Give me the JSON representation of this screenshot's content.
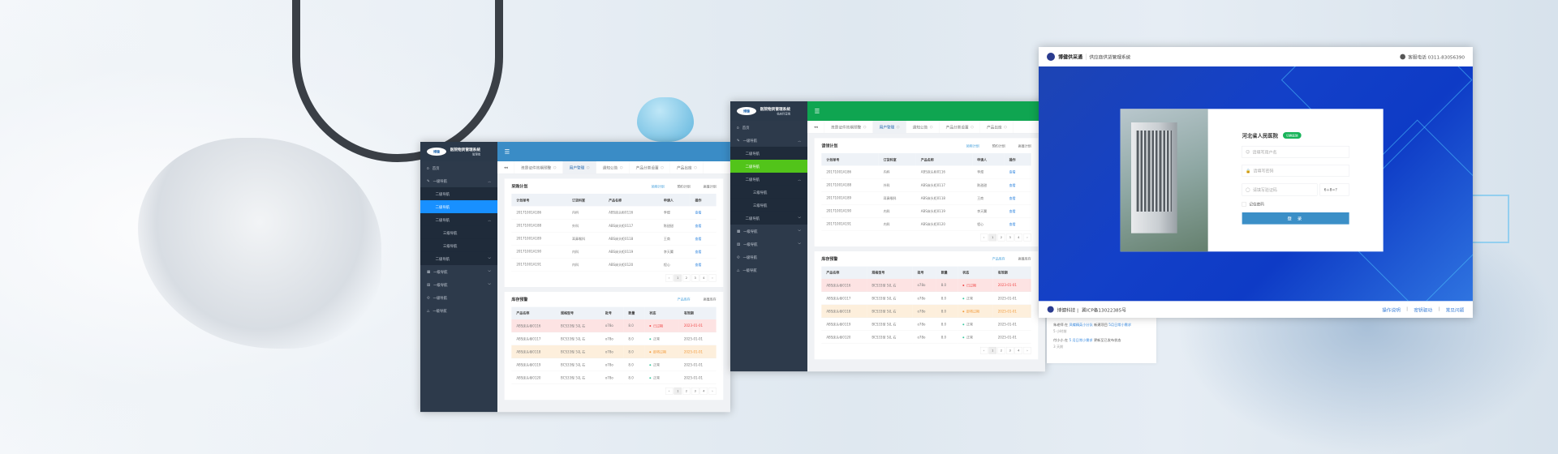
{
  "colors": {
    "blue_header": "#3a8cc6",
    "blue_active": "#1890ff",
    "green_header": "#0fa551",
    "green_active": "#52c41a",
    "sidebar": "#2d3a4b",
    "login_blue": "#1340c8",
    "login_button": "#3b8fc7"
  },
  "admin_windows": [
    {
      "id": "admin",
      "logo": "博健",
      "title": "医院物资管理系统",
      "subtitle": "管理端",
      "tabs": [
        "资质证件效期预警",
        "用户管理",
        "通知公告",
        "产品分类设置",
        "产品出库"
      ],
      "active_tab": 1,
      "nav": [
        {
          "label": "首页",
          "level": 1,
          "icon": "home-icon"
        },
        {
          "label": "一级导航",
          "level": 1,
          "icon": "edit-icon",
          "chev": "up"
        },
        {
          "label": "二级导航",
          "level": 2
        },
        {
          "label": "二级导航",
          "level": 2,
          "active": true
        },
        {
          "label": "二级导航",
          "level": 2,
          "chev": "up"
        },
        {
          "label": "三级导航",
          "level": 3
        },
        {
          "label": "三级导航",
          "level": 3
        },
        {
          "label": "二级导航",
          "level": 2,
          "chev": "down"
        },
        {
          "label": "一级导航",
          "level": 1,
          "icon": "grid-icon",
          "chev": "down"
        },
        {
          "label": "一级导航",
          "level": 1,
          "icon": "table-icon",
          "chev": "down"
        },
        {
          "label": "一级导航",
          "level": 1,
          "icon": "check-circle-icon"
        },
        {
          "label": "一级导航",
          "level": 1,
          "icon": "warning-icon"
        }
      ],
      "plan": {
        "title": "采购计划",
        "links": [
          "领用计划",
          "预约计划",
          "高值计划"
        ],
        "headers": [
          "计划单号",
          "订货科室",
          "产品名称",
          "申请人",
          "操作"
        ],
        "rows": [
          [
            "20171001A186",
            "内科",
            "ABS床头柜0116",
            "李煜",
            "查看"
          ],
          [
            "20171001A188",
            "外科",
            "ABS床头柜0117",
            "陈甜甜",
            "查看"
          ],
          [
            "20171001A189",
            "耳鼻喉科",
            "ABS床头柜0118",
            "王商",
            "查看"
          ],
          [
            "20171001A190",
            "内科",
            "ABS床头柜0119",
            "李天翼",
            "查看"
          ],
          [
            "20171001A191",
            "内科",
            "ABS床头柜0120",
            "程心",
            "查看"
          ]
        ]
      },
      "stock": {
        "title": "库存预警",
        "links": [
          "产品库存",
          "高值库存"
        ],
        "headers": [
          "产品名称",
          "规格型号",
          "批号",
          "数量",
          "状态",
          "有效期"
        ],
        "rows": [
          {
            "cells": [
              "ABS床头柜0116",
              "BCS33型 5孔 右",
              "o78o",
              "8.0",
              "已过期",
              "2023-01-01"
            ],
            "state": "expired"
          },
          {
            "cells": [
              "ABS床头柜0117",
              "BCS33型 5孔 右",
              "o78o",
              "8.0",
              "正常",
              "2025-01-01"
            ],
            "state": "normal"
          },
          {
            "cells": [
              "ABS床头柜0118",
              "BCS33型 5孔 右",
              "o78o",
              "8.0",
              "即将过期",
              "2025-01-01"
            ],
            "state": "soon"
          },
          {
            "cells": [
              "ABS床头柜0119",
              "BCS33型 5孔 右",
              "o78o",
              "8.0",
              "正常",
              "2025-01-01"
            ],
            "state": "normal"
          },
          {
            "cells": [
              "ABS床头柜0120",
              "BCS33型 5孔 右",
              "o78o",
              "8.0",
              "正常",
              "2025-01-01"
            ],
            "state": "normal"
          }
        ]
      },
      "pager": [
        "‹",
        "1",
        "2",
        "3",
        "4",
        "›"
      ]
    },
    {
      "id": "clinic",
      "logo": "博健",
      "title": "医院物资管理系统",
      "subtitle": "临床科室端",
      "tabs": [
        "资质证件效期预警",
        "用户管理",
        "通知公告",
        "产品分类设置",
        "产品出库"
      ],
      "active_tab": 1,
      "nav": [
        {
          "label": "首页",
          "level": 1,
          "icon": "home-icon"
        },
        {
          "label": "一级导航",
          "level": 1,
          "icon": "edit-icon",
          "chev": "up"
        },
        {
          "label": "二级导航",
          "level": 2
        },
        {
          "label": "二级导航",
          "level": 2,
          "active": true
        },
        {
          "label": "二级导航",
          "level": 2,
          "chev": "up"
        },
        {
          "label": "三级导航",
          "level": 3
        },
        {
          "label": "三级导航",
          "level": 3
        },
        {
          "label": "二级导航",
          "level": 2,
          "chev": "down"
        },
        {
          "label": "一级导航",
          "level": 1,
          "icon": "grid-icon",
          "chev": "down"
        },
        {
          "label": "一级导航",
          "level": 1,
          "icon": "table-icon",
          "chev": "down"
        },
        {
          "label": "一级导航",
          "level": 1,
          "icon": "check-circle-icon"
        },
        {
          "label": "一级导航",
          "level": 1,
          "icon": "warning-icon"
        }
      ],
      "plan": {
        "title": "请领计划",
        "links": [
          "领用计划",
          "预约计划",
          "高值计划"
        ],
        "headers": [
          "计划单号",
          "订货科室",
          "产品名称",
          "申请人",
          "操作"
        ],
        "rows": [
          [
            "20171001A186",
            "内科",
            "ABS床头柜0116",
            "李煜",
            "查看"
          ],
          [
            "20171001A188",
            "外科",
            "ABS床头柜0117",
            "陈甜甜",
            "查看"
          ],
          [
            "20171001A189",
            "耳鼻喉科",
            "ABS床头柜0118",
            "王商",
            "查看"
          ],
          [
            "20171001A190",
            "内科",
            "ABS床头柜0119",
            "李天翼",
            "查看"
          ],
          [
            "20171001A191",
            "内科",
            "ABS床头柜0120",
            "程心",
            "查看"
          ]
        ]
      },
      "stock": {
        "title": "库存预警",
        "links": [
          "产品库存",
          "高值库存"
        ],
        "headers": [
          "产品名称",
          "规格型号",
          "批号",
          "数量",
          "状态",
          "有效期"
        ],
        "rows": [
          {
            "cells": [
              "ABS床头柜0116",
              "BCS33型 5孔 右",
              "o78o",
              "8.0",
              "已过期",
              "2023-01-01"
            ],
            "state": "expired"
          },
          {
            "cells": [
              "ABS床头柜0117",
              "BCS33型 5孔 右",
              "o78o",
              "8.0",
              "正常",
              "2025-01-01"
            ],
            "state": "normal"
          },
          {
            "cells": [
              "ABS床头柜0118",
              "BCS33型 5孔 右",
              "o78o",
              "8.0",
              "即将过期",
              "2025-01-01"
            ],
            "state": "soon"
          },
          {
            "cells": [
              "ABS床头柜0119",
              "BCS33型 5孔 右",
              "o78o",
              "8.0",
              "正常",
              "2025-01-01"
            ],
            "state": "normal"
          },
          {
            "cells": [
              "ABS床头柜0120",
              "BCS33型 5孔 右",
              "o78o",
              "8.0",
              "正常",
              "2025-01-01"
            ],
            "state": "normal"
          }
        ]
      },
      "pager": [
        "‹",
        "1",
        "2",
        "3",
        "4",
        "›"
      ]
    }
  ],
  "login": {
    "brand": "博健供采通",
    "system": "供应商供货管理系统",
    "phone": "客服电话 0311-83056390",
    "hospital": "河北省人民医院",
    "badge": "切换医院",
    "username_placeholder": "请填写用户名",
    "password_placeholder": "请填写密码",
    "captcha_placeholder": "请填写验证码",
    "captcha": "6+8=?",
    "remember": "记住密码",
    "submit": "登 录",
    "footer_company": "博健科技 |",
    "footer_icp": "冀ICP备13022385号",
    "footer_links": [
      "操作说明",
      "密钥驱动",
      "常见问题"
    ]
  },
  "activity": [
    {
      "user": "朱老师",
      "prep": "在",
      "group": "凤蝶精英小分队",
      "verb": "新建项目",
      "item": "5月日常小需求",
      "time": "5 小时前"
    },
    {
      "user": "付小小",
      "prep": "在",
      "group": "5 月日常小需求",
      "verb": "更新至已发布状态",
      "item": "",
      "time": "3 天前"
    }
  ]
}
